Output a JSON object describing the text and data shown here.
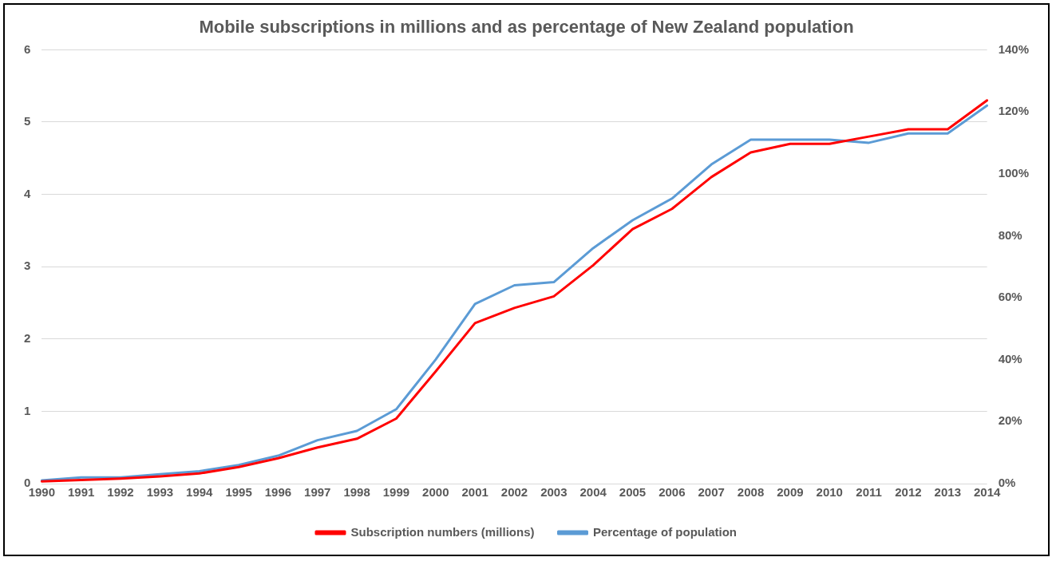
{
  "chart_data": {
    "type": "line",
    "title": "Mobile subscriptions in millions and as percentage of New Zealand population",
    "categories": [
      "1990",
      "1991",
      "1992",
      "1993",
      "1994",
      "1995",
      "1996",
      "1997",
      "1998",
      "1999",
      "2000",
      "2001",
      "2002",
      "2003",
      "2004",
      "2005",
      "2006",
      "2007",
      "2008",
      "2009",
      "2010",
      "2011",
      "2012",
      "2013",
      "2014"
    ],
    "series": [
      {
        "name": "Subscription numbers (millions)",
        "color": "#ff0000",
        "values": [
          0.03,
          0.05,
          0.07,
          0.1,
          0.14,
          0.23,
          0.35,
          0.5,
          0.62,
          0.9,
          1.55,
          2.22,
          2.43,
          2.59,
          3.02,
          3.52,
          3.8,
          4.24,
          4.58,
          4.7,
          4.7,
          4.8,
          4.9,
          4.9,
          5.3
        ]
      },
      {
        "name": "Percentage of population",
        "color": "#5b9bd5",
        "axis": "y2",
        "values": [
          1,
          2,
          2,
          3,
          4,
          6,
          9,
          14,
          17,
          24,
          40,
          58,
          64,
          65,
          76,
          85,
          92,
          103,
          111,
          111,
          111,
          110,
          113,
          113,
          122
        ]
      }
    ],
    "ylim": [
      0,
      6
    ],
    "yticks": [
      0,
      1,
      2,
      3,
      4,
      5,
      6
    ],
    "y2lim": [
      0,
      140
    ],
    "y2ticks": [
      {
        "value": 0,
        "label": "0%"
      },
      {
        "value": 20,
        "label": "20%"
      },
      {
        "value": 40,
        "label": "40%"
      },
      {
        "value": 60,
        "label": "60%"
      },
      {
        "value": 80,
        "label": "80%"
      },
      {
        "value": 100,
        "label": "100%"
      },
      {
        "value": 120,
        "label": "120%"
      },
      {
        "value": 140,
        "label": "140%"
      }
    ],
    "grid": "y",
    "legend": "bottom",
    "marker": "none",
    "line_style": "solid"
  }
}
